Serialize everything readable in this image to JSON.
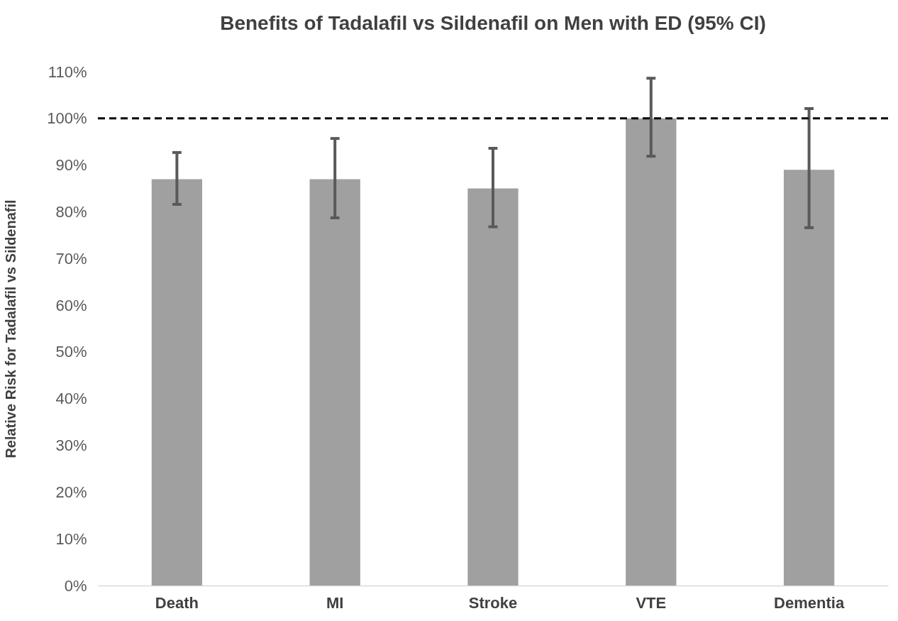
{
  "chart_data": {
    "type": "bar",
    "title": "Benefits of Tadalafil vs Sildenafil on Men with ED (95% CI)",
    "ylabel": "Relative Risk for Tadalafil vs Sildenafil",
    "categories": [
      "Death",
      "MI",
      "Stroke",
      "VTE",
      "Dementia"
    ],
    "values": [
      87,
      87,
      85,
      100,
      89
    ],
    "errors": [
      [
        81.6,
        92.7
      ],
      [
        78.7,
        95.7
      ],
      [
        76.8,
        93.6
      ],
      [
        91.9,
        108.6
      ],
      [
        76.6,
        102.1
      ]
    ],
    "color": "#a0a0a0",
    "ylim": [
      0,
      110
    ],
    "yticks": [
      {
        "value": 0,
        "label": "0%"
      },
      {
        "value": 10,
        "label": "10%"
      },
      {
        "value": 20,
        "label": "20%"
      },
      {
        "value": 30,
        "label": "30%"
      },
      {
        "value": 40,
        "label": "40%"
      },
      {
        "value": 50,
        "label": "50%"
      },
      {
        "value": 60,
        "label": "60%"
      },
      {
        "value": 70,
        "label": "70%"
      },
      {
        "value": 80,
        "label": "80%"
      },
      {
        "value": 90,
        "label": "90%"
      },
      {
        "value": 100,
        "label": "100%"
      },
      {
        "value": 110,
        "label": "110%"
      }
    ],
    "ref_lines": [
      {
        "axis": "y",
        "value": 100,
        "color": "#000000",
        "line_style": "dashed"
      }
    ],
    "grid": false
  }
}
